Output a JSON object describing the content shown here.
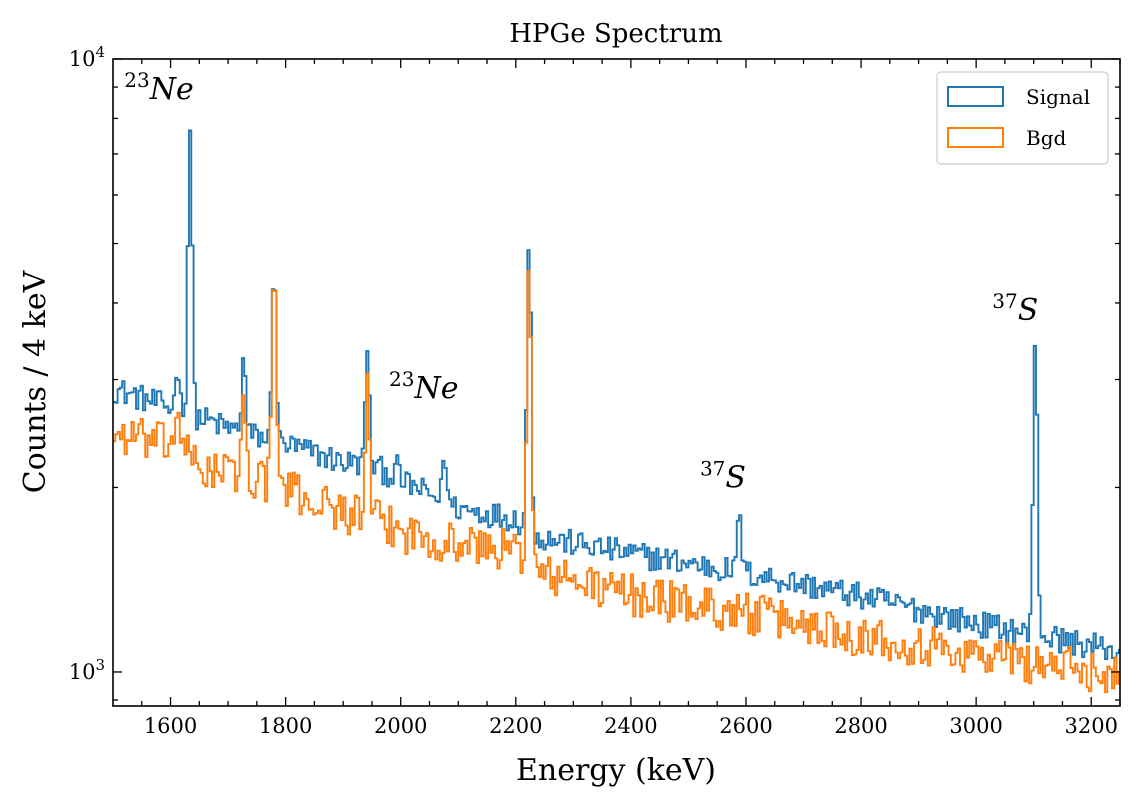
{
  "chart_data": {
    "type": "histogram-step",
    "title": "HPGe Spectrum",
    "xlabel": "Energy (keV)",
    "ylabel": "Counts / 4 keV",
    "xlim": [
      1500,
      3250
    ],
    "ylim": [
      880,
      10000
    ],
    "yscale": "log",
    "bin_width_keV": 4,
    "x_ticks": [
      1600,
      1800,
      2000,
      2200,
      2400,
      2600,
      2800,
      3000,
      3200
    ],
    "x_tick_labels": [
      "1600",
      "1800",
      "2000",
      "2200",
      "2400",
      "2600",
      "2800",
      "3000",
      "3200"
    ],
    "y_major_ticks": [
      1000,
      10000
    ],
    "y_tick_exponents": [
      {
        "base": "10",
        "exp": "3"
      },
      {
        "base": "10",
        "exp": "4"
      }
    ],
    "legend": {
      "position": "top-right",
      "entries": [
        "Signal",
        "Bgd"
      ]
    },
    "series": [
      {
        "name": "Signal",
        "color": "#1f77b4",
        "baseline": [
          [
            1500,
            2900
          ],
          [
            1600,
            2700
          ],
          [
            1700,
            2500
          ],
          [
            1800,
            2350
          ],
          [
            1900,
            2200
          ],
          [
            1950,
            2180
          ],
          [
            2000,
            2050
          ],
          [
            2100,
            1850
          ],
          [
            2200,
            1780
          ],
          [
            2240,
            1660
          ],
          [
            2400,
            1560
          ],
          [
            2600,
            1450
          ],
          [
            2800,
            1330
          ],
          [
            3000,
            1200
          ],
          [
            3250,
            1080
          ]
        ],
        "peaks": [
          {
            "energy": 1612,
            "height": 3200
          },
          {
            "energy": 1634,
            "height": 7700
          },
          {
            "energy": 1727,
            "height": 3300
          },
          {
            "energy": 1780,
            "height": 4700
          },
          {
            "energy": 1942,
            "height": 3400
          },
          {
            "energy": 1992,
            "height": 2200
          },
          {
            "energy": 2076,
            "height": 2300
          },
          {
            "energy": 2223,
            "height": 5000
          },
          {
            "energy": 2589,
            "height": 1850
          },
          {
            "energy": 3103,
            "height": 3500
          }
        ]
      },
      {
        "name": "Bgd",
        "color": "#ff7f0e",
        "baseline": [
          [
            1500,
            2450
          ],
          [
            1600,
            2350
          ],
          [
            1650,
            2150
          ],
          [
            1700,
            2120
          ],
          [
            1780,
            2050
          ],
          [
            1820,
            1950
          ],
          [
            1900,
            1830
          ],
          [
            1950,
            1780
          ],
          [
            2000,
            1700
          ],
          [
            2100,
            1620
          ],
          [
            2200,
            1580
          ],
          [
            2240,
            1450
          ],
          [
            2400,
            1340
          ],
          [
            2600,
            1250
          ],
          [
            2800,
            1150
          ],
          [
            3000,
            1070
          ],
          [
            3250,
            990
          ]
        ],
        "peaks": [
          {
            "energy": 1612,
            "height": 2800
          },
          {
            "energy": 1634,
            "height": 2300
          },
          {
            "energy": 1727,
            "height": 2900
          },
          {
            "energy": 1780,
            "height": 4700
          },
          {
            "energy": 1942,
            "height": 2950
          },
          {
            "energy": 2223,
            "height": 4700
          }
        ]
      }
    ],
    "annotations": [
      {
        "mass": "23",
        "element": "Ne",
        "energy": 1580,
        "counts": 8600
      },
      {
        "mass": "23",
        "element": "Ne",
        "energy": 2040,
        "counts": 2800
      },
      {
        "mass": "37",
        "element": "S",
        "energy": 2560,
        "counts": 2000
      },
      {
        "mass": "37",
        "element": "S",
        "energy": 3068,
        "counts": 3750
      }
    ]
  }
}
